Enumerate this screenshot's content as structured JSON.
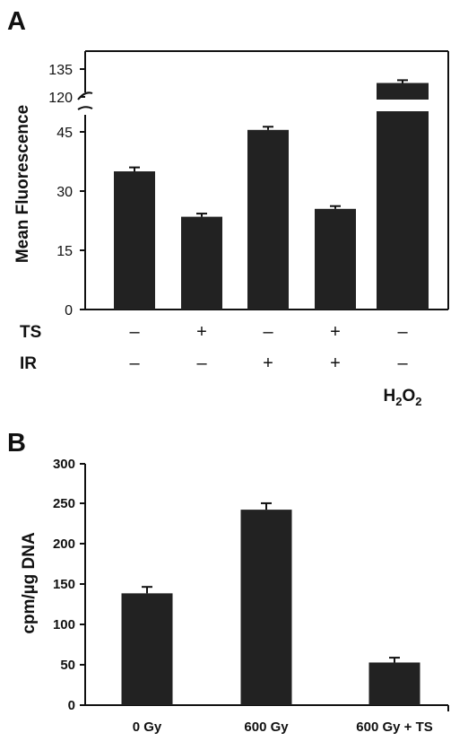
{
  "chart_data": [
    {
      "panel_label": "A",
      "type": "bar",
      "ylabel": "Mean Fluorescence",
      "yticks_lower": [
        "0",
        "15",
        "30",
        "45"
      ],
      "yticks_upper": [
        "120",
        "135"
      ],
      "ylim_lower": [
        0,
        50
      ],
      "ylim_upper": [
        115,
        140
      ],
      "axis_break": [
        50,
        115
      ],
      "conditions": [
        {
          "name": "TS",
          "values": [
            "–",
            "+",
            "–",
            "+",
            "–"
          ]
        },
        {
          "name": "IR",
          "values": [
            "–",
            "–",
            "+",
            "+",
            "–"
          ]
        }
      ],
      "h2o2_label": {
        "main": "H",
        "sub1": "2",
        "mid": "O",
        "sub2": "2",
        "column": 4
      },
      "bars": [
        {
          "value": 35,
          "error": 1.0
        },
        {
          "value": 23.5,
          "error": 0.8
        },
        {
          "value": 45.5,
          "error": 0.8
        },
        {
          "value": 25.5,
          "error": 0.7
        },
        {
          "value": 127.5,
          "error": 1.5
        }
      ],
      "bar_color": "#222222"
    },
    {
      "panel_label": "B",
      "type": "bar",
      "ylabel": "cpm/µg DNA",
      "yticks": [
        "0",
        "50",
        "100",
        "150",
        "200",
        "250",
        "300"
      ],
      "ylim": [
        0,
        300
      ],
      "categories": [
        "0 Gy",
        "600 Gy",
        "600 Gy + TS"
      ],
      "values": [
        139,
        243,
        53
      ],
      "errors": [
        8,
        8,
        6
      ],
      "bar_color": "#222222"
    }
  ]
}
